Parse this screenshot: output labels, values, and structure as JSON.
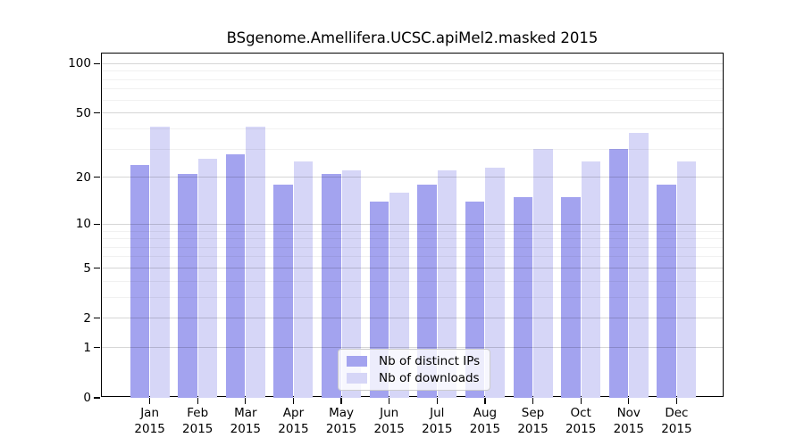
{
  "title": "BSgenome.Amellifera.UCSC.apiMel2.masked 2015",
  "legend": {
    "items": [
      {
        "label": "Nb of distinct IPs",
        "color": "#a3a3ef"
      },
      {
        "label": "Nb of downloads",
        "color": "#d6d6f7"
      }
    ]
  },
  "colors": {
    "ips_bar": "#a3a3ef",
    "downloads_bar": "#d6d6f7",
    "major_grid": "rgba(0,0,0,0.16)",
    "minor_grid": "rgba(0,0,0,0.055)",
    "frame": "#000000"
  },
  "chart_data": {
    "type": "bar",
    "title": "BSgenome.Amellifera.UCSC.apiMel2.masked 2015",
    "categories": [
      "Jan\n2015",
      "Feb\n2015",
      "Mar\n2015",
      "Apr\n2015",
      "May\n2015",
      "Jun\n2015",
      "Jul\n2015",
      "Aug\n2015",
      "Sep\n2015",
      "Oct\n2015",
      "Nov\n2015",
      "Dec\n2015"
    ],
    "series": [
      {
        "name": "Nb of distinct IPs",
        "color": "#a3a3ef",
        "values": [
          24,
          21,
          28,
          18,
          21,
          14,
          18,
          14,
          15,
          15,
          30,
          18
        ]
      },
      {
        "name": "Nb of downloads",
        "color": "#d6d6f7",
        "values": [
          41,
          26,
          41,
          25,
          22,
          16,
          22,
          23,
          30,
          25,
          38,
          25
        ]
      }
    ],
    "xlabel": "",
    "ylabel": "",
    "yscale": "log1p",
    "ylim": [
      0,
      115
    ],
    "yticks": [
      0,
      1,
      2,
      5,
      10,
      20,
      50,
      100
    ],
    "minor_gridlines": [
      3,
      4,
      6,
      7,
      8,
      9,
      30,
      40,
      60,
      70,
      80,
      90
    ],
    "grid": "horizontal",
    "legend_position": "lower center"
  }
}
